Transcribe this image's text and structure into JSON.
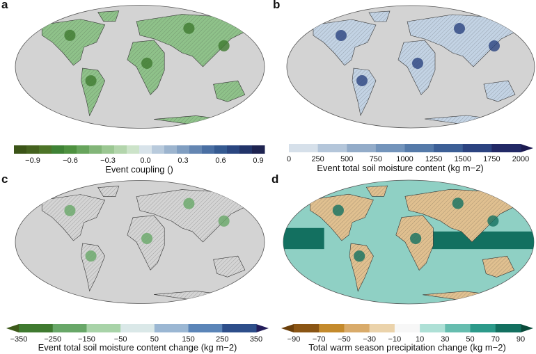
{
  "panels": [
    {
      "label": "a",
      "land_color": "#8fc28a",
      "accent": "#3f7a30"
    },
    {
      "label": "b",
      "land_color": "#c3d3e4",
      "accent": "#2b4380"
    },
    {
      "label": "c",
      "land_color": "#d4d4d4",
      "accent": "#68a768"
    },
    {
      "label": "d",
      "land_color": "#e0c090",
      "accent": "#137060"
    }
  ],
  "colorbars": [
    {
      "title": "Event coupling ()",
      "ticks": [
        "−0.9",
        "−0.6",
        "−0.3",
        "0.0",
        "0.3",
        "0.6",
        "0.9"
      ],
      "colors": [
        "#3b5417",
        "#45621f",
        "#4d7428",
        "#3f8235",
        "#4e9140",
        "#67a45c",
        "#82b578",
        "#9bc792",
        "#b3d5ac",
        "#cce3c9",
        "#d8e3ea",
        "#b8cadc",
        "#9cb4ce",
        "#809ec1",
        "#6486b2",
        "#4a6fa3",
        "#355a91",
        "#2a4680",
        "#223469",
        "#1e2350"
      ],
      "arrow_left": null,
      "arrow_right": null
    },
    {
      "title": "Event total soil moisture content (kg m−2)",
      "ticks": [
        "0",
        "250",
        "500",
        "750",
        "1000",
        "1250",
        "1500",
        "1750",
        "2000"
      ],
      "colors": [
        "#d6e0ea",
        "#b4c6da",
        "#93acc9",
        "#7394bb",
        "#557aa9",
        "#3c5f96",
        "#2b4380",
        "#222966"
      ],
      "arrow_left": null,
      "arrow_right": "#1c1a50"
    },
    {
      "title": "Event total soil moisture content change (kg m−2)",
      "ticks": [
        "−350",
        "−250",
        "−150",
        "−50",
        "50",
        "150",
        "250",
        "350"
      ],
      "colors": [
        "#3f7a30",
        "#68a768",
        "#a8d3a8",
        "#dae8e8",
        "#9bb7d3",
        "#5b85b8",
        "#2d4e8a"
      ],
      "arrow_left": "#3d5a1a",
      "arrow_right": "#231d5a"
    },
    {
      "title": "Total warm season precipitation change (kg m−2)",
      "ticks": [
        "−90",
        "−70",
        "−50",
        "−30",
        "−10",
        "10",
        "30",
        "50",
        "70",
        "90"
      ],
      "colors": [
        "#8a5514",
        "#c48a2c",
        "#d9ab6a",
        "#ebd3ab",
        "#f7f7f7",
        "#aee0d6",
        "#66bdaf",
        "#2c9a8a",
        "#137060"
      ],
      "arrow_left": "#6b3f0a",
      "arrow_right": "#0a4a3a"
    }
  ]
}
